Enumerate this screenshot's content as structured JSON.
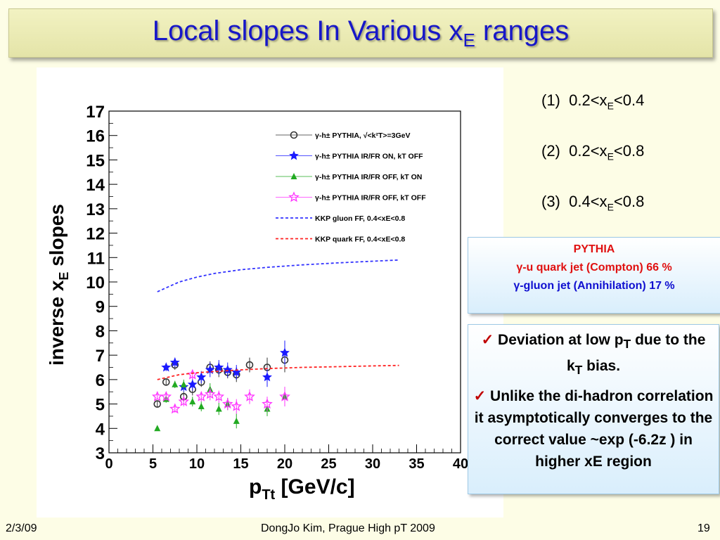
{
  "title": {
    "main": "Local slopes In Various x",
    "sub": "E",
    "tail": " ranges"
  },
  "ranges": [
    {
      "num": "(1)",
      "lo": "0.2<x",
      "sub": "E",
      "hi": "<0.4"
    },
    {
      "num": "(2)",
      "lo": "0.2<x",
      "sub": "E",
      "hi": "<0.8"
    },
    {
      "num": "(3)",
      "lo": "0.4<x",
      "sub": "E",
      "hi": "<0.8"
    }
  ],
  "pythia_box": {
    "heading": "PYTHIA",
    "line1": "γ-u quark jet (Compton) 66 %",
    "line2": "γ-gluon jet (Annihilation) 17 %"
  },
  "notes": {
    "check_glyph": "✓",
    "n1_pre": " Deviation at low p",
    "n1_sub1": "T",
    "n1_mid": " due to the k",
    "n1_sub2": "T",
    "n1_post": " bias.",
    "n2": " Unlike the di-hadron correlation it asymptotically converges to the correct value ~exp (-6.2z ) in higher xE region"
  },
  "footer": {
    "date": "2/3/09",
    "center": "DongJo Kim, Prague High pT 2009",
    "page": "19"
  },
  "colors": {
    "title": "#1717c8",
    "blue_series": "#1a1aff",
    "green_series": "#22aa22",
    "magenta_series": "#ff33ff",
    "black_series": "#333333",
    "kkp_gluon": "#3333ff",
    "kkp_quark": "#ff2222"
  },
  "chart_data": {
    "type": "scatter",
    "xlabel_main": "p",
    "xlabel_sub": "Tt",
    "xlabel_unit": " [GeV/c]",
    "ylabel_main": "inverse x",
    "ylabel_sub": "E",
    "ylabel_tail": " slopes",
    "xlim": [
      0,
      40
    ],
    "ylim": [
      3,
      17
    ],
    "xticks": [
      0,
      5,
      10,
      15,
      20,
      25,
      30,
      35,
      40
    ],
    "yticks": [
      3,
      4,
      5,
      6,
      7,
      8,
      9,
      10,
      11,
      12,
      13,
      14,
      15,
      16,
      17
    ],
    "legend_position": "top-right",
    "series": [
      {
        "name": "γ-h± PYTHIA, √<k²T>=3GeV",
        "marker": "open-circle",
        "color": "#333333",
        "x": [
          5.5,
          6.5,
          7.5,
          8.5,
          9.5,
          10.5,
          11.5,
          12.5,
          13.5,
          14.5,
          16,
          18,
          20
        ],
        "y": [
          5.0,
          5.9,
          6.6,
          5.3,
          5.6,
          5.9,
          6.5,
          6.4,
          6.3,
          6.2,
          6.6,
          6.5,
          6.8
        ],
        "err": [
          0.12,
          0.15,
          0.2,
          0.2,
          0.25,
          0.2,
          0.25,
          0.3,
          0.25,
          0.3,
          0.3,
          0.4,
          0.5
        ]
      },
      {
        "name": "γ-h± PYTHIA IR/FR ON, kT OFF",
        "marker": "star",
        "color": "#1a1aff",
        "x": [
          6.5,
          7.5,
          8.5,
          9.5,
          10.5,
          11.5,
          12.5,
          13.5,
          14.5,
          18,
          20
        ],
        "y": [
          6.5,
          6.7,
          5.7,
          5.8,
          6.1,
          6.4,
          6.5,
          6.4,
          6.3,
          6.1,
          7.1
        ],
        "err": [
          0.15,
          0.2,
          0.2,
          0.25,
          0.25,
          0.3,
          0.3,
          0.3,
          0.3,
          0.4,
          0.5
        ]
      },
      {
        "name": "γ-h± PYTHIA IR/FR OFF, kT ON",
        "marker": "filled-triangle",
        "color": "#22aa22",
        "x": [
          5.5,
          6.5,
          7.5,
          8.5,
          9.5,
          10.5,
          11.5,
          12.5,
          13.5,
          14.5,
          18,
          20
        ],
        "y": [
          4.0,
          5.2,
          5.8,
          5.8,
          5.1,
          4.9,
          5.6,
          4.8,
          5.0,
          4.3,
          4.8,
          5.3
        ],
        "err": [
          0.1,
          0.15,
          0.15,
          0.2,
          0.2,
          0.2,
          0.25,
          0.25,
          0.25,
          0.3,
          0.3,
          0.4
        ]
      },
      {
        "name": "γ-h± PYTHIA IR/FR OFF, kT OFF",
        "marker": "open-star",
        "color": "#ff33ff",
        "x": [
          5.5,
          6.5,
          7.5,
          8.5,
          9.5,
          10.5,
          11.5,
          12.5,
          13.5,
          14.5,
          16,
          18,
          20
        ],
        "y": [
          5.3,
          5.3,
          4.8,
          5.1,
          6.2,
          5.3,
          5.4,
          5.3,
          5.0,
          4.9,
          5.3,
          5.0,
          5.3
        ],
        "err": [
          0.12,
          0.15,
          0.15,
          0.2,
          0.2,
          0.2,
          0.25,
          0.25,
          0.25,
          0.3,
          0.3,
          0.3,
          0.4
        ]
      },
      {
        "name": "KKP gluon FF, 0.4<xE<0.8",
        "marker": "dashed-line",
        "color": "#3333ff",
        "x": [
          5.5,
          8,
          10,
          12,
          15,
          18,
          22,
          26,
          30,
          33
        ],
        "y": [
          9.6,
          10.0,
          10.2,
          10.35,
          10.5,
          10.6,
          10.7,
          10.78,
          10.85,
          10.9
        ]
      },
      {
        "name": "KKP quark FF, 0.4<xE<0.8",
        "marker": "dashed-line",
        "color": "#ff2222",
        "x": [
          5.5,
          8,
          10,
          12,
          15,
          18,
          22,
          26,
          30,
          33
        ],
        "y": [
          6.0,
          6.2,
          6.28,
          6.33,
          6.4,
          6.45,
          6.5,
          6.53,
          6.56,
          6.58
        ]
      }
    ]
  }
}
